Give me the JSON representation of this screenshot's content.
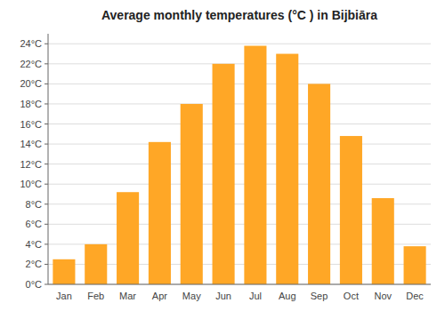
{
  "chart_data": {
    "type": "bar",
    "title": "Average monthly temperatures (°C ) in Bijbiāra",
    "categories": [
      "Jan",
      "Feb",
      "Mar",
      "Apr",
      "May",
      "Jun",
      "Jul",
      "Aug",
      "Sep",
      "Oct",
      "Nov",
      "Dec"
    ],
    "values": [
      2.5,
      4.0,
      9.2,
      14.2,
      18.0,
      22.0,
      23.8,
      23.0,
      20.0,
      14.8,
      8.6,
      3.8
    ],
    "color": "#FFA726",
    "ylim": [
      0,
      25
    ],
    "yticks": [
      {
        "value": 0,
        "label": "0°C"
      },
      {
        "value": 2,
        "label": "2°C"
      },
      {
        "value": 4,
        "label": "4°C"
      },
      {
        "value": 6,
        "label": "6°C"
      },
      {
        "value": 8,
        "label": "8°C"
      },
      {
        "value": 10,
        "label": "10°C"
      },
      {
        "value": 12,
        "label": "12°C"
      },
      {
        "value": 14,
        "label": "14°C"
      },
      {
        "value": 16,
        "label": "16°C"
      },
      {
        "value": 18,
        "label": "18°C"
      },
      {
        "value": 20,
        "label": "20°C"
      },
      {
        "value": 22,
        "label": "22°C"
      },
      {
        "value": 24,
        "label": "24°C"
      }
    ],
    "grid": true
  }
}
